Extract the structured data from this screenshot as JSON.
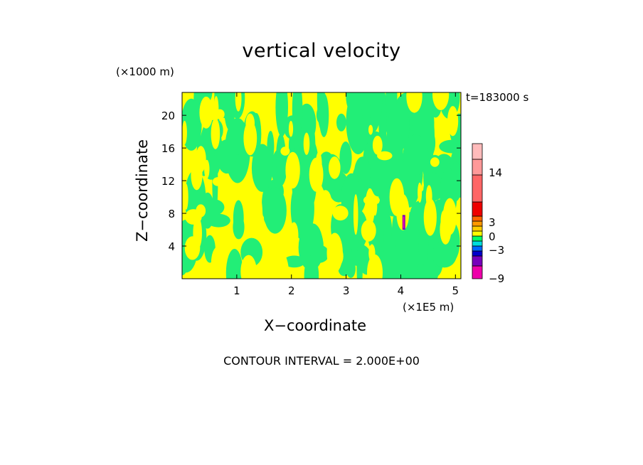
{
  "chart_data": {
    "type": "heatmap",
    "title": "vertical velocity",
    "xlabel": "X−coordinate",
    "ylabel": "Z−coordinate",
    "x_unit": "(×1E5 m)",
    "z_unit": "(×1000 m)",
    "time_label": "t=183000 s",
    "contour_interval": "CONTOUR INTERVAL = 2.000E+00",
    "xlim": [
      0,
      5.1
    ],
    "ylim": [
      0,
      22.8
    ],
    "x_ticks": [
      1,
      2,
      3,
      4,
      5
    ],
    "y_ticks": [
      4,
      8,
      12,
      16,
      20
    ],
    "colorbar": {
      "colors": [
        "#ee00aa",
        "#7700bb",
        "#0000cc",
        "#0066ff",
        "#00dddd",
        "#00ff66",
        "#ffff00",
        "#ffcc00",
        "#ff9900",
        "#ff6600",
        "#ee0000",
        "#ff6666",
        "#ff9999",
        "#ffbbbb"
      ],
      "labels": [
        "−9",
        "−3",
        "0",
        "3",
        "14"
      ]
    },
    "field_colors": {
      "positive": "#ffff00",
      "negative": "#22ee77"
    },
    "notes": "Field alternates between small positive (yellow) and small negative (green) values; narrow strong updraft/downdraft near x≈4.05, z≈6–8."
  }
}
